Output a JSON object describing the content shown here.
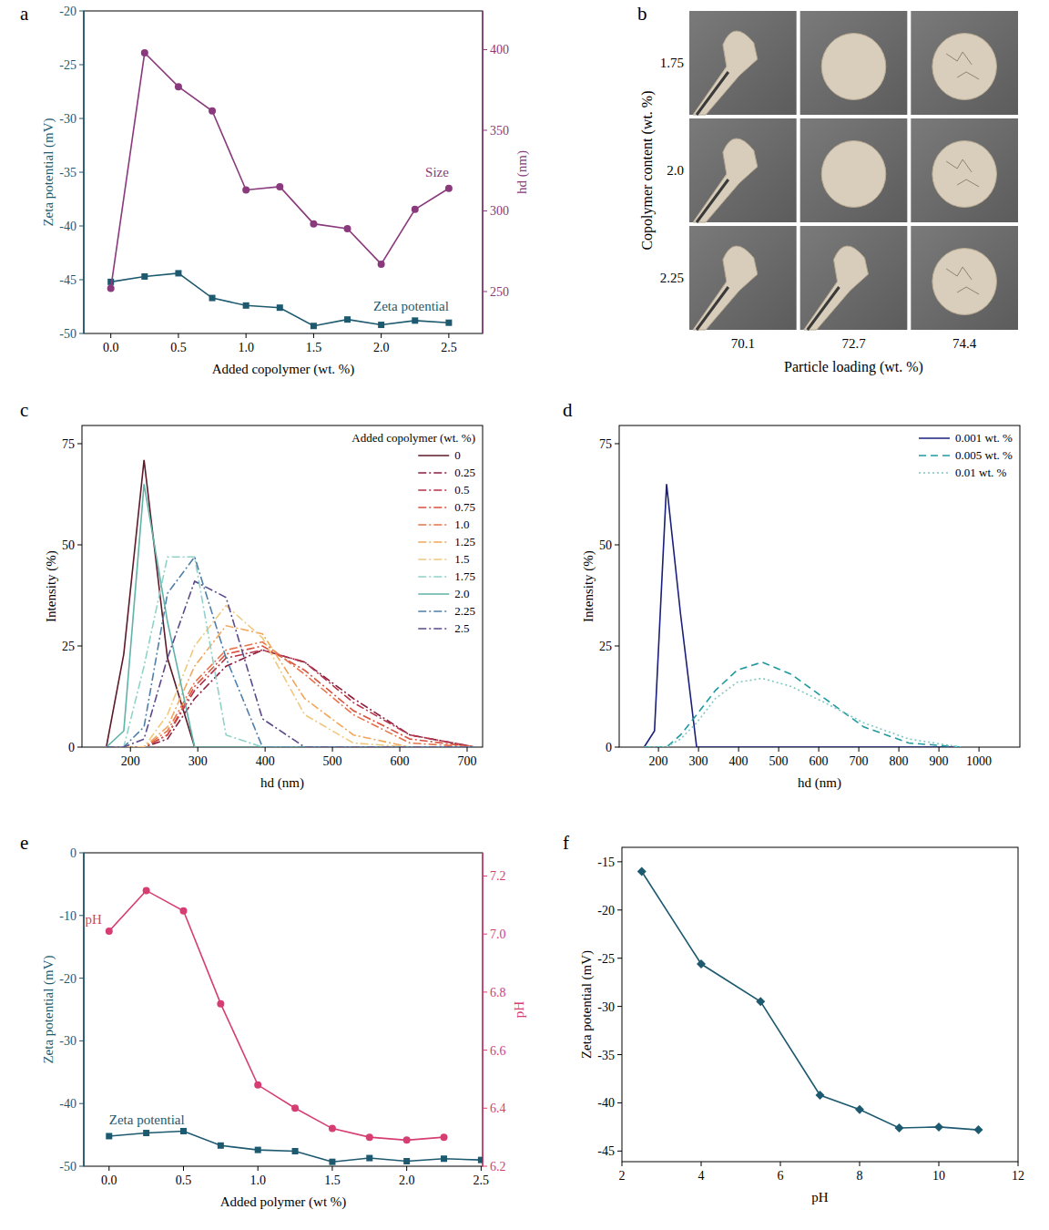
{
  "chart_data": [
    {
      "type": "line",
      "label": "a",
      "xlabel": "Added copolymer (wt. %)",
      "ylabel": "Zeta potential (mV)",
      "y2label": "hd (nm)",
      "xlim": [
        -0.2,
        2.75
      ],
      "xticks": [
        {
          "value": 0,
          "label": "0.0"
        },
        0.5,
        {
          "value": 1,
          "label": "1.0"
        },
        1.5,
        {
          "value": 2,
          "label": "2.0"
        },
        2.5
      ],
      "ylim": [
        -50,
        -20
      ],
      "yticks": [
        -50,
        -45,
        -40,
        -35,
        -30,
        -25,
        -20
      ],
      "y2lim": [
        224,
        424
      ],
      "y2ticks": [
        250,
        300,
        350,
        400
      ],
      "grid": false,
      "series": [
        {
          "name": "Zeta potential",
          "color": "#1d5a70",
          "marker": "square",
          "line_style": "solid",
          "x": [
            0,
            0.25,
            0.5,
            0.75,
            1.0,
            1.25,
            1.5,
            1.75,
            2.0,
            2.25,
            2.5
          ],
          "values": [
            -45.2,
            -44.7,
            -44.4,
            -46.7,
            -47.4,
            -47.6,
            -49.3,
            -48.7,
            -49.2,
            -48.8,
            -49.0
          ]
        },
        {
          "name": "Size",
          "color": "#8a3a7c",
          "marker": "circle",
          "line_style": "solid",
          "axis": "y2",
          "x": [
            0,
            0.25,
            0.5,
            0.75,
            1.0,
            1.25,
            1.5,
            1.75,
            2.0,
            2.25,
            2.5
          ],
          "values": [
            252,
            398,
            377,
            362,
            313,
            315,
            292,
            289,
            267,
            301,
            314
          ]
        }
      ]
    },
    {
      "type": "image_grid",
      "label": "b",
      "xlabel": "Particle loading (wt. %)",
      "ylabel": "Copolymer content (wt. %)",
      "categories": [
        "70.1",
        "72.7",
        "74.4"
      ],
      "row_categories": [
        "1.75",
        "2.0",
        "2.25"
      ]
    },
    {
      "type": "line",
      "label": "c",
      "xlabel": "hd (nm)",
      "ylabel": "Intensity (%)",
      "xlim": [
        128,
        723
      ],
      "xticks": [
        200,
        300,
        400,
        500,
        600,
        700
      ],
      "ylim": [
        0,
        79.5
      ],
      "yticks": [
        0,
        25,
        50,
        75
      ],
      "grid": false,
      "legend": "upper right",
      "legend_title": "Added copolymer (wt. %)",
      "x": [
        164.2,
        190.1,
        220.2,
        255.0,
        295.3,
        342.0,
        396.1,
        458.7,
        531.2,
        615.1,
        712.4
      ],
      "series": [
        {
          "name": "0",
          "color": "#5c1a2a",
          "line_style": "solid",
          "marker": "none",
          "values": [
            0,
            23,
            71,
            22,
            0,
            0,
            0,
            0,
            0,
            0,
            0
          ]
        },
        {
          "name": "0.25",
          "color": "#8b1e3f",
          "line_style": "dashdot",
          "marker": "none",
          "values": [
            0,
            0,
            0,
            2,
            12,
            20,
            24,
            21,
            12,
            3,
            0
          ]
        },
        {
          "name": "0.5",
          "color": "#b5334a",
          "line_style": "dashdot",
          "marker": "none",
          "values": [
            0,
            0,
            0,
            3,
            14,
            22,
            24,
            21,
            11,
            3,
            0
          ]
        },
        {
          "name": "0.75",
          "color": "#d9503f",
          "line_style": "dashdot",
          "marker": "none",
          "values": [
            0,
            0,
            0,
            3,
            15,
            23,
            25,
            19,
            9,
            2,
            0
          ]
        },
        {
          "name": "1.0",
          "color": "#e8734a",
          "line_style": "dashdot",
          "marker": "none",
          "values": [
            0,
            0,
            0,
            4,
            16,
            24,
            26,
            18,
            8,
            1,
            0
          ]
        },
        {
          "name": "1.25",
          "color": "#f2a65a",
          "line_style": "dashdot",
          "marker": "none",
          "values": [
            0,
            0,
            0,
            5,
            20,
            30,
            28,
            12,
            3,
            0,
            0
          ]
        },
        {
          "name": "1.5",
          "color": "#f0c97e",
          "line_style": "dashdot",
          "marker": "none",
          "values": [
            0,
            0,
            0,
            8,
            25,
            35,
            27,
            8,
            1,
            0,
            0
          ]
        },
        {
          "name": "1.75",
          "color": "#8fd3c8",
          "line_style": "dashdot",
          "marker": "none",
          "values": [
            0,
            0,
            20,
            47,
            47,
            3,
            0,
            0,
            0,
            0,
            0
          ]
        },
        {
          "name": "2.0",
          "color": "#5fb3a8",
          "line_style": "solid",
          "marker": "none",
          "values": [
            0,
            4,
            65,
            31,
            0,
            0,
            0,
            0,
            0,
            0,
            0
          ]
        },
        {
          "name": "2.25",
          "color": "#4f7fa8",
          "line_style": "dashdot",
          "marker": "none",
          "values": [
            0,
            0,
            5,
            38,
            47,
            22,
            0,
            0,
            0,
            0,
            0
          ]
        },
        {
          "name": "2.5",
          "color": "#5b4a8a",
          "line_style": "dashdot",
          "marker": "none",
          "values": [
            0,
            0,
            2,
            22,
            41,
            37,
            7,
            0,
            0,
            0,
            0
          ]
        }
      ]
    },
    {
      "type": "line",
      "label": "d",
      "xlabel": "hd (nm)",
      "ylabel": "Intensity (%)",
      "xlim": [
        102,
        1102
      ],
      "xticks": [
        200,
        300,
        400,
        500,
        600,
        700,
        800,
        900,
        1000
      ],
      "ylim": [
        0,
        79.5
      ],
      "yticks": [
        0,
        25,
        50,
        75
      ],
      "grid": false,
      "legend": "upper right",
      "x": [
        164.2,
        190.1,
        220.2,
        255.0,
        295.3,
        342.0,
        396.1,
        458.7,
        531.2,
        615.1,
        712.4,
        825.0,
        955.4
      ],
      "series": [
        {
          "name": "0.001 wt. %",
          "color": "#1a1f7a",
          "line_style": "solid",
          "marker": "none",
          "values": [
            0,
            4,
            65,
            33,
            0,
            0,
            0,
            0,
            0,
            0,
            0,
            0,
            0
          ]
        },
        {
          "name": "0.005 wt. %",
          "color": "#1f9aa0",
          "line_style": "dash",
          "marker": "none",
          "values": [
            0,
            0,
            0,
            3,
            8,
            14,
            19,
            21,
            18,
            12,
            5,
            1,
            0
          ]
        },
        {
          "name": "0.01 wt. %",
          "color": "#7fc8c0",
          "line_style": "dot",
          "marker": "none",
          "values": [
            0,
            0,
            0,
            2,
            6,
            12,
            16,
            17,
            15,
            11,
            6,
            2,
            0
          ]
        }
      ]
    },
    {
      "type": "line",
      "label": "e",
      "xlabel": "Added polymer (wt %)",
      "ylabel": "Zeta potential (mV)",
      "y2label": "pH",
      "xlim": [
        -0.17,
        2.51
      ],
      "xticks": [
        {
          "value": 0,
          "label": "0.0"
        },
        0.5,
        {
          "value": 1,
          "label": "1.0"
        },
        1.5,
        {
          "value": 2,
          "label": "2.0"
        },
        2.5
      ],
      "ylim": [
        -50,
        0
      ],
      "yticks": [
        -50,
        -40,
        -30,
        -20,
        -10,
        0
      ],
      "y2lim": [
        6.2,
        7.28
      ],
      "y2ticks": [
        6.2,
        6.4,
        6.6,
        6.8,
        {
          "value": 7,
          "label": "7.0"
        },
        7.2
      ],
      "grid": false,
      "series": [
        {
          "name": "Zeta potential",
          "color": "#1d5a70",
          "marker": "square",
          "line_style": "solid",
          "x": [
            0,
            0.25,
            0.5,
            0.75,
            1.0,
            1.25,
            1.5,
            1.75,
            2.0,
            2.25,
            2.5
          ],
          "values": [
            -45.2,
            -44.7,
            -44.4,
            -46.7,
            -47.4,
            -47.6,
            -49.3,
            -48.7,
            -49.2,
            -48.8,
            -49.0
          ]
        },
        {
          "name": "pH",
          "color": "#d63e73",
          "marker": "circle",
          "line_style": "solid",
          "axis": "y2",
          "x": [
            0,
            0.25,
            0.5,
            0.75,
            1.0,
            1.25,
            1.5,
            1.75,
            2.0,
            2.25
          ],
          "values": [
            7.01,
            7.15,
            7.08,
            6.76,
            6.48,
            6.4,
            6.33,
            6.3,
            6.29,
            6.3
          ]
        }
      ]
    },
    {
      "type": "line",
      "label": "f",
      "xlabel": "pH",
      "ylabel": "Zeta potential (mV)",
      "xlim": [
        2,
        12
      ],
      "xticks": [
        2,
        4,
        6,
        8,
        10,
        12
      ],
      "ylim": [
        -46.1,
        -13.5
      ],
      "yticks": [
        -45,
        -40,
        -35,
        -30,
        -25,
        -20,
        -15
      ],
      "grid": false,
      "series": [
        {
          "color": "#1d5a70",
          "marker": "diamond",
          "line_style": "solid",
          "x": [
            2.5,
            4,
            5.5,
            7,
            8,
            9,
            10,
            11
          ],
          "values": [
            -16,
            -25.6,
            -29.5,
            -39.2,
            -40.7,
            -42.6,
            -42.5,
            -42.8
          ]
        }
      ]
    }
  ]
}
